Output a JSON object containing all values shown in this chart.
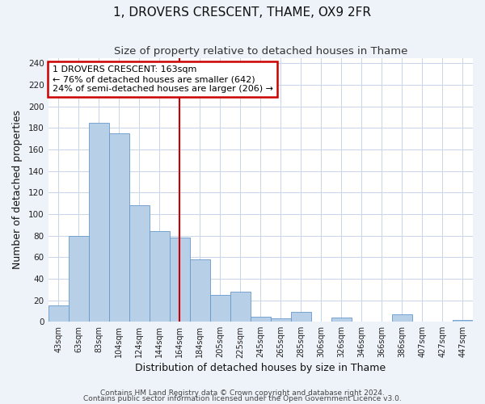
{
  "title": "1, DROVERS CRESCENT, THAME, OX9 2FR",
  "subtitle": "Size of property relative to detached houses in Thame",
  "xlabel": "Distribution of detached houses by size in Thame",
  "ylabel": "Number of detached properties",
  "bar_labels": [
    "43sqm",
    "63sqm",
    "83sqm",
    "104sqm",
    "124sqm",
    "144sqm",
    "164sqm",
    "184sqm",
    "205sqm",
    "225sqm",
    "245sqm",
    "265sqm",
    "285sqm",
    "306sqm",
    "326sqm",
    "346sqm",
    "366sqm",
    "386sqm",
    "407sqm",
    "427sqm",
    "447sqm"
  ],
  "bar_values": [
    15,
    80,
    185,
    175,
    108,
    84,
    78,
    58,
    25,
    28,
    5,
    3,
    9,
    0,
    4,
    0,
    0,
    7,
    0,
    0,
    2
  ],
  "bar_color": "#b8cfe8",
  "bar_edge_color": "#6699cc",
  "vline_index": 6,
  "vline_color": "#cc0000",
  "annotation_title": "1 DROVERS CRESCENT: 163sqm",
  "annotation_line1": "← 76% of detached houses are smaller (642)",
  "annotation_line2": "24% of semi-detached houses are larger (206) →",
  "annotation_box_color": "#cc0000",
  "ylim": [
    0,
    245
  ],
  "yticks": [
    0,
    20,
    40,
    60,
    80,
    100,
    120,
    140,
    160,
    180,
    200,
    220,
    240
  ],
  "footer1": "Contains HM Land Registry data © Crown copyright and database right 2024.",
  "footer2": "Contains public sector information licensed under the Open Government Licence v3.0.",
  "bg_color": "#eef2f9",
  "plot_bg_color": "#ffffff",
  "grid_color": "#c8d4e8",
  "title_fontsize": 11,
  "subtitle_fontsize": 9.5,
  "tick_fontsize": 7,
  "axis_label_fontsize": 9,
  "footer_fontsize": 6.5,
  "annot_fontsize": 8
}
